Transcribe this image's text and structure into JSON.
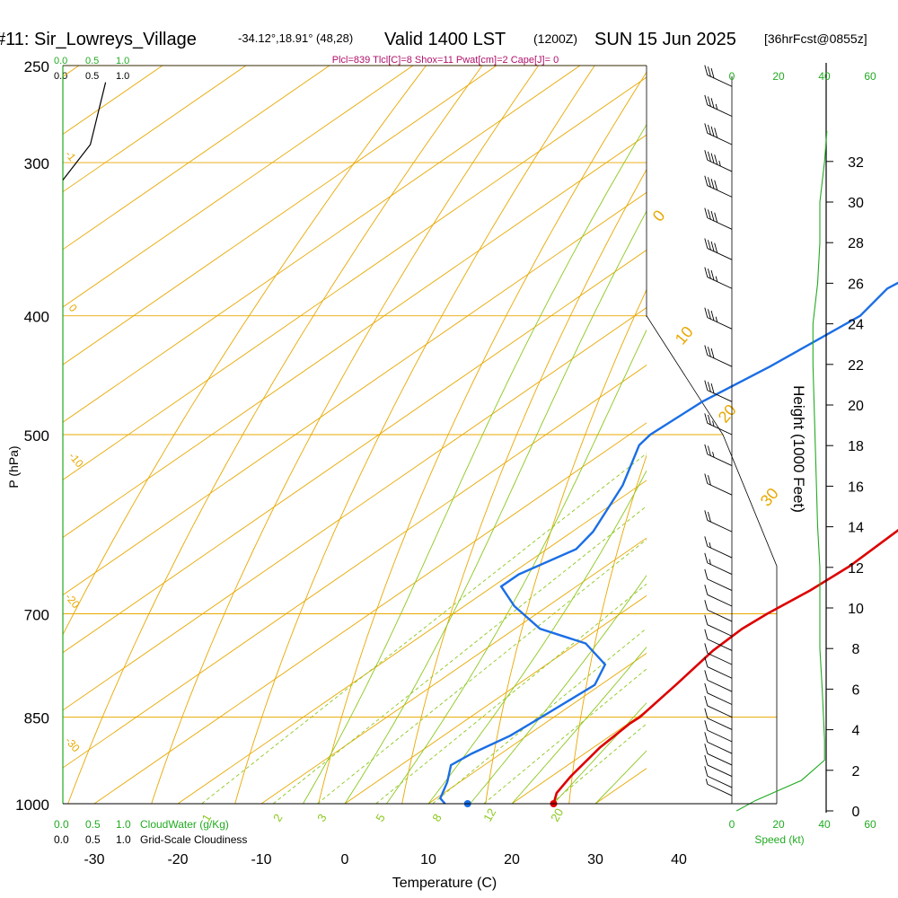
{
  "header": {
    "station": "#11: Sir_Lowreys_Village",
    "coords": "-34.12°,18.91° (48,28)",
    "valid": "Valid 1400 LST",
    "zulu": "(1200Z)",
    "date": "SUN 15 Jun 2025",
    "forecast": "[36hrFcst@0855z]",
    "indices": "Plcl=839 Tlcl[C]=8 Shox=11 Pwat[cm]=2 Cape[J]= 0"
  },
  "scales": {
    "cloudwater_top": [
      "0.0",
      "0.5",
      "1.0"
    ],
    "cloudiness_top": [
      "0.0",
      "0.5",
      "1.0"
    ],
    "cloudwater_bottom": [
      "0.0",
      "0.5",
      "1.0"
    ],
    "cloudiness_bottom": [
      "0.0",
      "0.5",
      "1.0"
    ],
    "cloudwater_label": "CloudWater (g/Kg)",
    "cloudiness_label": "Grid-Scale Cloudiness",
    "speed_ticks": [
      "0",
      "20",
      "40",
      "60"
    ],
    "speed_label": "Speed (kt)"
  },
  "colors": {
    "isobar": "#e8a800",
    "isotherm": "#e8a800",
    "dry_adiabat": "#8cc81e",
    "moist_adiabat": "#8cc81e",
    "mixing_ratio": "#8cc81e",
    "temperature": "#dd0000",
    "dewpoint": "#1a6ee6",
    "speed_profile": "#22aa22",
    "scale_green": "#22aa22"
  },
  "chart_data": {
    "type": "line",
    "subtype": "skew-t",
    "xlabel": "Temperature (C)",
    "ylabel": "P (hPa)",
    "y2label": "Height (1000 Feet)",
    "x_ticks": [
      -30,
      -20,
      -10,
      0,
      10,
      20,
      30,
      40
    ],
    "p_ticks": [
      250,
      300,
      400,
      500,
      700,
      850,
      1000
    ],
    "height_ticks": [
      0,
      2,
      4,
      6,
      8,
      10,
      12,
      14,
      16,
      18,
      20,
      22,
      24,
      26,
      28,
      30,
      32
    ],
    "isotherm_labels": [
      {
        "t": "0",
        "kind": "isotherm"
      },
      {
        "t": "10",
        "kind": "isotherm"
      },
      {
        "t": "20",
        "kind": "isotherm"
      },
      {
        "t": "30",
        "kind": "isotherm"
      },
      {
        "t": "0",
        "kind": "isotherm"
      },
      {
        "t": "-10",
        "kind": "isotherm"
      },
      {
        "t": "-20",
        "kind": "isotherm"
      },
      {
        "t": "-30",
        "kind": "isotherm"
      },
      {
        "t": "-1",
        "kind": "isotherm"
      }
    ],
    "mixing_ratio_labels": [
      "1",
      "2",
      "3",
      "5",
      "8",
      "12",
      "20"
    ],
    "temperature": [
      {
        "p": 1000,
        "t": 25.0
      },
      {
        "p": 980,
        "t": 23.5
      },
      {
        "p": 950,
        "t": 22.3
      },
      {
        "p": 900,
        "t": 20.8
      },
      {
        "p": 860,
        "t": 20.2
      },
      {
        "p": 850,
        "t": 20.3
      },
      {
        "p": 800,
        "t": 19.0
      },
      {
        "p": 750,
        "t": 17.5
      },
      {
        "p": 720,
        "t": 17.2
      },
      {
        "p": 700,
        "t": 17.6
      },
      {
        "p": 670,
        "t": 18.7
      },
      {
        "p": 640,
        "t": 19.2
      },
      {
        "p": 600,
        "t": 18.8
      },
      {
        "p": 550,
        "t": 17.8
      },
      {
        "p": 500,
        "t": 16.5
      },
      {
        "p": 450,
        "t": 14.5
      },
      {
        "p": 400,
        "t": 11.7
      },
      {
        "p": 350,
        "t": 8.5
      },
      {
        "p": 300,
        "t": 5.8
      },
      {
        "p": 280,
        "t": 4.5
      },
      {
        "p": 260,
        "t": 2.3
      }
    ],
    "dewpoint": [
      {
        "p": 1000,
        "t": 12.0
      },
      {
        "p": 990,
        "t": 10.5
      },
      {
        "p": 960,
        "t": 8.5
      },
      {
        "p": 930,
        "t": 6.0
      },
      {
        "p": 910,
        "t": 6.5
      },
      {
        "p": 880,
        "t": 8.0
      },
      {
        "p": 850,
        "t": 8.5
      },
      {
        "p": 800,
        "t": 9.3
      },
      {
        "p": 770,
        "t": 7.0
      },
      {
        "p": 740,
        "t": 1.0
      },
      {
        "p": 720,
        "t": -7.0
      },
      {
        "p": 690,
        "t": -14.0
      },
      {
        "p": 665,
        "t": -19.0
      },
      {
        "p": 650,
        "t": -19.0
      },
      {
        "p": 620,
        "t": -16.5
      },
      {
        "p": 600,
        "t": -17.5
      },
      {
        "p": 550,
        "t": -22.0
      },
      {
        "p": 510,
        "t": -27.0
      },
      {
        "p": 500,
        "t": -27.5
      },
      {
        "p": 470,
        "t": -27.0
      },
      {
        "p": 440,
        "t": -25.0
      },
      {
        "p": 400,
        "t": -23.0
      },
      {
        "p": 380,
        "t": -24.5
      },
      {
        "p": 360,
        "t": -23.0
      },
      {
        "p": 340,
        "t": -18.0
      },
      {
        "p": 320,
        "t": -15.0
      },
      {
        "p": 305,
        "t": -12.5
      },
      {
        "p": 290,
        "t": -12.5
      },
      {
        "p": 270,
        "t": -13.0
      },
      {
        "p": 258,
        "t": -13.5
      }
    ],
    "surface_dewpoint_marker": {
      "p": 1000,
      "t": 14.7
    },
    "lcl_line": [
      {
        "p": 400,
        "t": 36.0
      },
      {
        "p": 500,
        "t": 45.0
      },
      {
        "p": 650,
        "t": 54.0
      }
    ],
    "cloud_water_line": [
      {
        "p": 310,
        "v": 0.0
      },
      {
        "p": 290,
        "v": 0.45
      },
      {
        "p": 258,
        "v": 0.7
      }
    ],
    "speed_profile": [
      {
        "h": 0.0,
        "kt": 2
      },
      {
        "h": 0.5,
        "kt": 10
      },
      {
        "h": 1.5,
        "kt": 30
      },
      {
        "h": 2.5,
        "kt": 40
      },
      {
        "h": 3.5,
        "kt": 40
      },
      {
        "h": 6,
        "kt": 39
      },
      {
        "h": 8,
        "kt": 38
      },
      {
        "h": 10,
        "kt": 38
      },
      {
        "h": 12,
        "kt": 38
      },
      {
        "h": 14,
        "kt": 37
      },
      {
        "h": 18,
        "kt": 36
      },
      {
        "h": 22,
        "kt": 35
      },
      {
        "h": 24,
        "kt": 35
      },
      {
        "h": 26,
        "kt": 37
      },
      {
        "h": 28,
        "kt": 38
      },
      {
        "h": 30,
        "kt": 38
      },
      {
        "h": 32,
        "kt": 40
      },
      {
        "h": 33.5,
        "kt": 41
      }
    ],
    "wind_barbs": [
      {
        "p": 985,
        "kt": 5
      },
      {
        "p": 970,
        "kt": 10
      },
      {
        "p": 950,
        "kt": 10
      },
      {
        "p": 930,
        "kt": 10
      },
      {
        "p": 910,
        "kt": 10
      },
      {
        "p": 890,
        "kt": 10
      },
      {
        "p": 870,
        "kt": 10
      },
      {
        "p": 850,
        "kt": 10
      },
      {
        "p": 830,
        "kt": 10
      },
      {
        "p": 810,
        "kt": 10
      },
      {
        "p": 790,
        "kt": 10
      },
      {
        "p": 770,
        "kt": 10
      },
      {
        "p": 750,
        "kt": 10
      },
      {
        "p": 730,
        "kt": 10
      },
      {
        "p": 710,
        "kt": 10
      },
      {
        "p": 690,
        "kt": 10
      },
      {
        "p": 670,
        "kt": 10
      },
      {
        "p": 650,
        "kt": 15
      },
      {
        "p": 630,
        "kt": 15
      },
      {
        "p": 600,
        "kt": 20
      },
      {
        "p": 560,
        "kt": 20
      },
      {
        "p": 530,
        "kt": 25
      },
      {
        "p": 500,
        "kt": 25
      },
      {
        "p": 470,
        "kt": 30
      },
      {
        "p": 440,
        "kt": 30
      },
      {
        "p": 410,
        "kt": 35
      },
      {
        "p": 380,
        "kt": 35
      },
      {
        "p": 360,
        "kt": 40
      },
      {
        "p": 340,
        "kt": 40
      },
      {
        "p": 320,
        "kt": 40
      },
      {
        "p": 305,
        "kt": 45
      },
      {
        "p": 290,
        "kt": 40
      },
      {
        "p": 275,
        "kt": 35
      },
      {
        "p": 260,
        "kt": 30
      }
    ]
  }
}
